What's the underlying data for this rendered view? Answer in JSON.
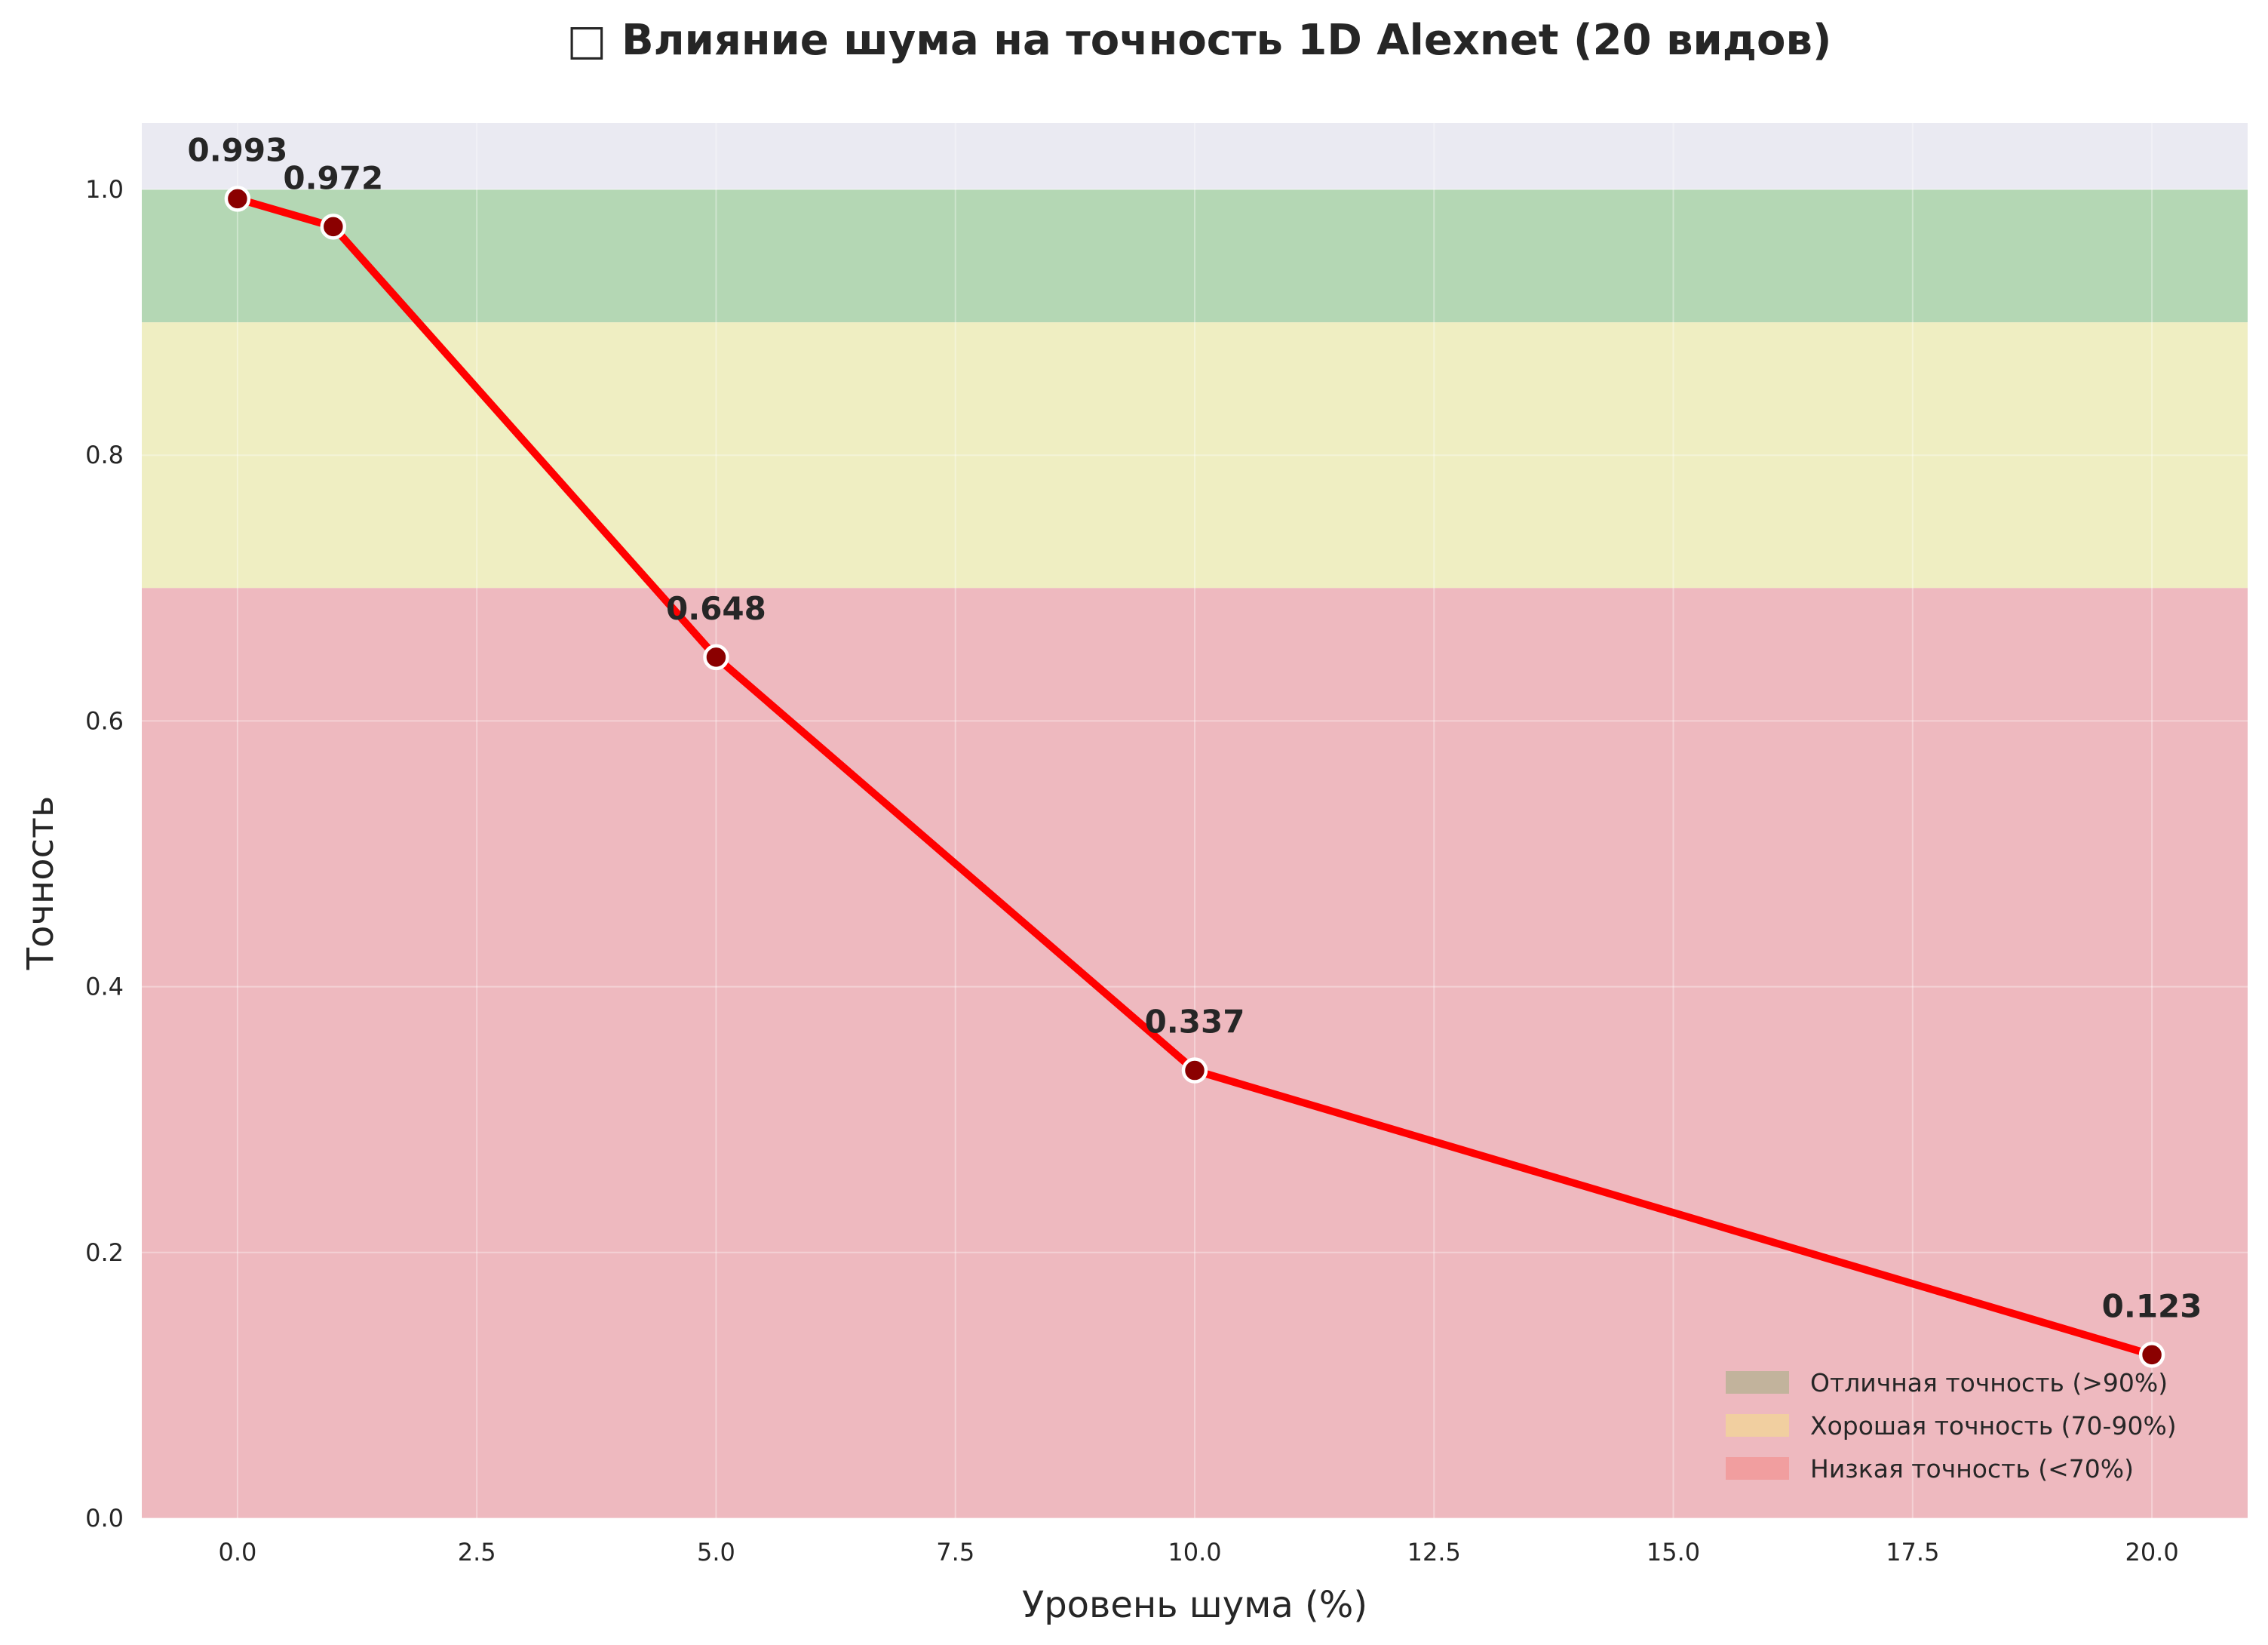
{
  "chart_data": {
    "type": "line",
    "title": "□ Влияние шума на точность 1D Alexnet (20 видов)",
    "xlabel": "Уровень шума (%)",
    "ylabel": "Точность",
    "xlim": [
      -1,
      21
    ],
    "ylim": [
      0,
      1.05
    ],
    "xticks": [
      0,
      2.5,
      5,
      7.5,
      10,
      12.5,
      15,
      17.5,
      20
    ],
    "xtick_labels": [
      "0.0",
      "2.5",
      "5.0",
      "7.5",
      "10.0",
      "12.5",
      "15.0",
      "17.5",
      "20.0"
    ],
    "yticks": [
      0,
      0.2,
      0.4,
      0.6,
      0.8,
      1.0
    ],
    "ytick_labels": [
      "0.0",
      "0.2",
      "0.4",
      "0.6",
      "0.8",
      "1.0"
    ],
    "grid": true,
    "legend_position": "lower-right",
    "series": [
      {
        "x": [
          0,
          1,
          5,
          10,
          20
        ],
        "y": [
          0.993,
          0.972,
          0.648,
          0.337,
          0.123
        ],
        "labels": [
          "0.993",
          "0.972",
          "0.648",
          "0.337",
          "0.123"
        ],
        "color": "#ff0000",
        "marker_color": "#8b0000"
      }
    ],
    "bands": [
      {
        "label": "Отличная точность (>90%)",
        "y0": 0.9,
        "y1": 1.0,
        "color": "#b4d7b4",
        "legend_color": "#c2b39c"
      },
      {
        "label": "Хорошая точность (70-90%)",
        "y0": 0.7,
        "y1": 0.9,
        "color": "#efeec2",
        "legend_color": "#f1cfa0"
      },
      {
        "label": "Низкая точность (<70%)",
        "y0": 0.0,
        "y1": 0.7,
        "color": "#eeb9bf",
        "legend_color": "#f19e9f"
      }
    ],
    "plot_background": "#eaeaf2"
  }
}
